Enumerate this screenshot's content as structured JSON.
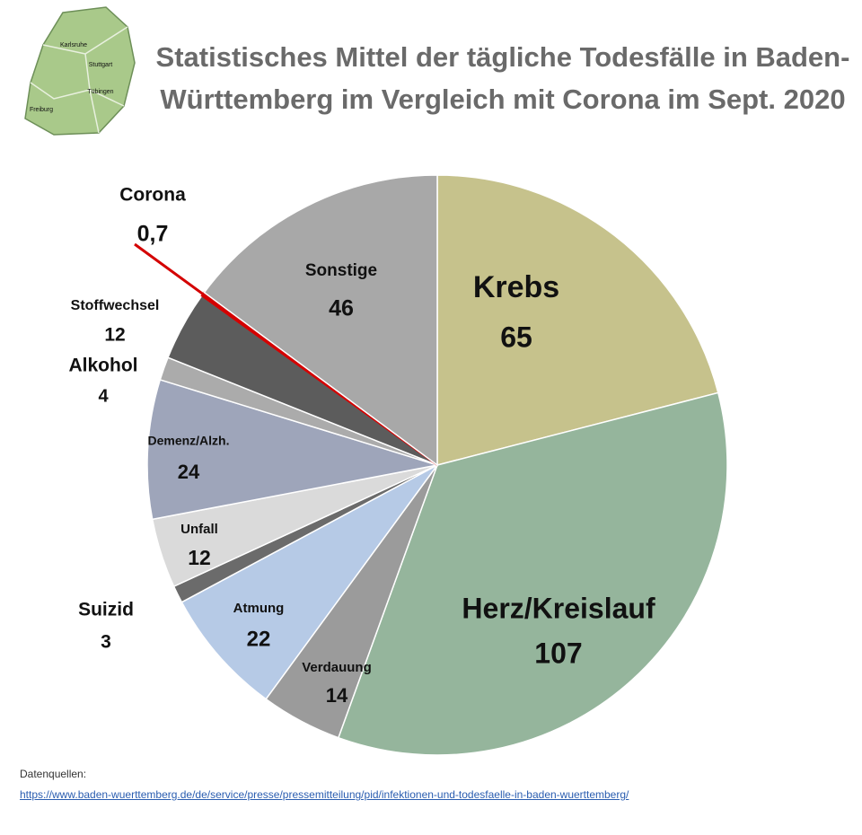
{
  "chart_data": {
    "type": "pie",
    "title": "Statistisches Mittel der tägliche Todesfälle in Baden-Württemberg im Vergleich mit Corona im Sept. 2020",
    "categories": [
      "Krebs",
      "Herz/Kreislauf",
      "Verdauung",
      "Atmung",
      "Suizid",
      "Unfall",
      "Demenz/Alzh.",
      "Alkohol",
      "Stoffwechsel",
      "Corona",
      "Sonstige"
    ],
    "values": [
      65,
      107,
      14,
      22,
      3,
      12,
      24,
      4,
      12,
      0.7,
      46
    ],
    "value_labels": [
      "65",
      "107",
      "14",
      "22",
      "3",
      "12",
      "24",
      "4",
      "12",
      "0,7",
      "46"
    ],
    "colors": [
      "#c6c28c",
      "#95b59c",
      "#9b9b9b",
      "#b6cae6",
      "#6b6b6b",
      "#dadada",
      "#9ea5ba",
      "#ababab",
      "#5c5c5c",
      "#d40000",
      "#a8a8a8"
    ],
    "map_labels": [
      "Karlsruhe",
      "Stuttgart",
      "Tübingen",
      "Freiburg"
    ],
    "source_heading": "Datenquellen:",
    "source_url": "https://www.baden-wuerttemberg.de/de/service/presse/pressemitteilung/pid/infektionen-und-todesfaelle-in-baden-wuerttemberg/"
  }
}
